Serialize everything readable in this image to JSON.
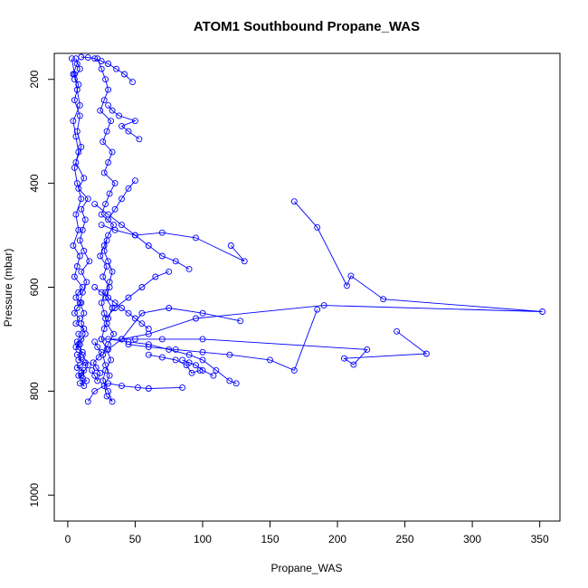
{
  "chart_data": {
    "type": "line",
    "title": "ATOM1 Southbound Propane_WAS",
    "xlabel": "Propane_WAS",
    "ylabel": "Pressure (mbar)",
    "xlim": [
      -10,
      365
    ],
    "ylim": [
      1050,
      150
    ],
    "y_axis_reversed": true,
    "x_ticks": [
      0,
      50,
      100,
      150,
      200,
      250,
      300,
      350
    ],
    "y_ticks": [
      200,
      400,
      600,
      800,
      1000
    ],
    "grid": false,
    "legend": "none",
    "marker": "open-circle",
    "color": "#0000ff",
    "series": [
      {
        "x": [
          3,
          5,
          7,
          9,
          4,
          6,
          8,
          5,
          7,
          10,
          6,
          8,
          4,
          9,
          7,
          5,
          11,
          8,
          6,
          10,
          7,
          5,
          9,
          6,
          12,
          8,
          10,
          7,
          9,
          6,
          8,
          11,
          7,
          10,
          8,
          13,
          9,
          7,
          12,
          10,
          8,
          11,
          14,
          9,
          12,
          10,
          15,
          11,
          8,
          13,
          10,
          12,
          9,
          11,
          14,
          10,
          16,
          12,
          9,
          11,
          13,
          10,
          15,
          8,
          12,
          6,
          10,
          7,
          9,
          5,
          8,
          4,
          7,
          6,
          9,
          5
        ],
        "y": [
          160,
          190,
          220,
          250,
          280,
          310,
          340,
          370,
          400,
          430,
          460,
          490,
          520,
          540,
          560,
          580,
          600,
          610,
          620,
          630,
          640,
          650,
          660,
          670,
          680,
          690,
          700,
          705,
          710,
          715,
          720,
          725,
          730,
          735,
          740,
          745,
          750,
          755,
          760,
          765,
          770,
          775,
          780,
          785,
          790,
          770,
          750,
          730,
          710,
          690,
          670,
          650,
          630,
          610,
          590,
          570,
          550,
          530,
          510,
          490,
          470,
          450,
          430,
          410,
          390,
          360,
          330,
          300,
          270,
          240,
          210,
          190,
          170,
          160,
          180,
          200
        ]
      },
      {
        "x": [
          22,
          25,
          28,
          30,
          27,
          24,
          32,
          29,
          26,
          33,
          30,
          27,
          35,
          31,
          28,
          25,
          34,
          30,
          27,
          24,
          29,
          26,
          31,
          28,
          33,
          30,
          27,
          25,
          29,
          32,
          28,
          26,
          30,
          33,
          29,
          27,
          31,
          28,
          26,
          30,
          34,
          29,
          27,
          25,
          28,
          31,
          33,
          30,
          27,
          29
        ],
        "y": [
          160,
          180,
          200,
          220,
          240,
          260,
          280,
          300,
          320,
          340,
          360,
          380,
          400,
          420,
          440,
          460,
          480,
          500,
          520,
          540,
          560,
          580,
          600,
          620,
          640,
          660,
          680,
          700,
          720,
          740,
          760,
          780,
          800,
          820,
          810,
          790,
          770,
          750,
          730,
          710,
          690,
          670,
          650,
          630,
          610,
          590,
          570,
          550,
          530,
          510
        ]
      },
      {
        "x": [
          168,
          185,
          207,
          210,
          234,
          352,
          190,
          95,
          60,
          40,
          25
        ],
        "y": [
          435,
          485,
          597,
          578,
          623,
          647,
          635,
          660,
          690,
          700,
          700
        ]
      },
      {
        "x": [
          121,
          131,
          95,
          70,
          50,
          35,
          25
        ],
        "y": [
          520,
          550,
          505,
          495,
          500,
          490,
          480
        ]
      },
      {
        "x": [
          128,
          100,
          75,
          55,
          40,
          30
        ],
        "y": [
          665,
          650,
          640,
          650,
          700,
          720
        ]
      },
      {
        "x": [
          244,
          266,
          205,
          212,
          222,
          100,
          70,
          50,
          40
        ],
        "y": [
          685,
          728,
          737,
          749,
          720,
          700,
          700,
          700,
          700
        ]
      },
      {
        "x": [
          185,
          168,
          150,
          120,
          100,
          80,
          60,
          45
        ],
        "y": [
          643,
          760,
          740,
          730,
          725,
          720,
          715,
          710
        ]
      },
      {
        "x": [
          30,
          45,
          60,
          75,
          90,
          100,
          110,
          120,
          125
        ],
        "y": [
          700,
          705,
          710,
          720,
          730,
          740,
          760,
          780,
          785
        ]
      },
      {
        "x": [
          85,
          60,
          52,
          40,
          30,
          20,
          15
        ],
        "y": [
          793,
          795,
          793,
          790,
          785,
          800,
          820
        ]
      },
      {
        "x": [
          75,
          65,
          55,
          45,
          35,
          28
        ],
        "y": [
          570,
          580,
          600,
          620,
          640,
          660
        ]
      },
      {
        "x": [
          53,
          45,
          40,
          50,
          38,
          33,
          30
        ],
        "y": [
          315,
          300,
          290,
          280,
          270,
          260,
          250
        ]
      },
      {
        "x": [
          50,
          45,
          40,
          35,
          30
        ],
        "y": [
          395,
          410,
          430,
          450,
          470
        ]
      },
      {
        "x": [
          90,
          80,
          70,
          60,
          50,
          40,
          30,
          20
        ],
        "y": [
          565,
          550,
          540,
          520,
          500,
          480,
          460,
          440
        ]
      },
      {
        "x": [
          98,
          92,
          88,
          80,
          70,
          60
        ],
        "y": [
          760,
          765,
          750,
          740,
          735,
          730
        ]
      },
      {
        "x": [
          108,
          100,
          95,
          90,
          85
        ],
        "y": [
          770,
          760,
          750,
          745,
          740
        ]
      },
      {
        "x": [
          48,
          42,
          36,
          30,
          25,
          20,
          15,
          10
        ],
        "y": [
          205,
          190,
          180,
          170,
          165,
          160,
          158,
          157
        ]
      },
      {
        "x": [
          60,
          55,
          50,
          45,
          40,
          35,
          30,
          25,
          20
        ],
        "y": [
          680,
          670,
          660,
          650,
          640,
          630,
          620,
          610,
          600
        ]
      },
      {
        "x": [
          18,
          20,
          22,
          24,
          21,
          19,
          23,
          25,
          22,
          20
        ],
        "y": [
          760,
          770,
          780,
          765,
          755,
          745,
          735,
          725,
          715,
          705
        ]
      }
    ]
  }
}
